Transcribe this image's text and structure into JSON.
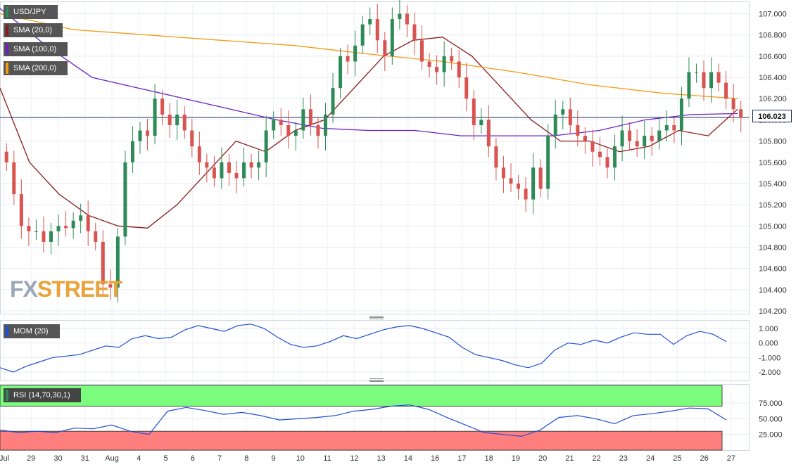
{
  "chart": {
    "symbol": "USD/JPY",
    "last_price": "106.023",
    "watermark": {
      "fx": "FX",
      "street": "STREET"
    },
    "overlays": [
      {
        "label": "SMA (20,0)",
        "color": "#8b1a1a"
      },
      {
        "label": "SMA (100,0)",
        "color": "#6a1fc9"
      },
      {
        "label": "SMA (200,0)",
        "color": "#f39c12"
      }
    ],
    "colors": {
      "up": "#2e8b57",
      "down": "#d9534f",
      "last_line": "#1a2b5c",
      "mom": "#1f4fd8",
      "rsi": "#1f4fd8",
      "rsi_ob": "#7cfc7c",
      "rsi_os": "#ff7f7f"
    }
  },
  "panes": {
    "mom_label": "MOM (20)",
    "rsi_label": "RSI (14,70,30,1)"
  },
  "chart_data": {
    "type": "candlestick",
    "title": "USD/JPY",
    "ylim": [
      104.2,
      107.05
    ],
    "y_ticks": [
      "107.000",
      "106.800",
      "106.600",
      "106.400",
      "106.200",
      "106.000",
      "105.800",
      "105.600",
      "105.400",
      "105.200",
      "105.000",
      "104.800",
      "104.600",
      "104.400",
      "104.200"
    ],
    "x_ticks": [
      "Jul",
      "29",
      "30",
      "31",
      "Aug",
      "4",
      "5",
      "6",
      "7",
      "8",
      "9",
      "10",
      "11",
      "12",
      "13",
      "14",
      "16",
      "17",
      "18",
      "19",
      "20",
      "21",
      "22",
      "23",
      "24",
      "25",
      "26",
      "27"
    ],
    "close_series": [
      105.6,
      105.3,
      105.0,
      104.95,
      104.95,
      104.85,
      104.95,
      105.0,
      104.98,
      105.05,
      105.1,
      104.95,
      104.85,
      104.45,
      104.42,
      104.9,
      105.6,
      105.8,
      105.9,
      105.85,
      106.2,
      106.05,
      105.95,
      106.05,
      105.9,
      105.75,
      105.6,
      105.55,
      105.45,
      105.6,
      105.5,
      105.45,
      105.6,
      105.55,
      105.6,
      105.9,
      106.0,
      105.95,
      105.85,
      105.9,
      106.1,
      105.95,
      105.85,
      106.05,
      106.3,
      106.6,
      106.55,
      106.7,
      106.9,
      106.95,
      106.75,
      106.6,
      106.95,
      107.0,
      106.9,
      106.75,
      106.55,
      106.5,
      106.45,
      106.6,
      106.55,
      106.4,
      106.2,
      105.95,
      106.0,
      105.75,
      105.55,
      105.45,
      105.4,
      105.35,
      105.25,
      105.55,
      105.35,
      105.85,
      106.05,
      106.1,
      105.95,
      105.85,
      105.8,
      105.7,
      105.65,
      105.55,
      105.75,
      105.9,
      105.8,
      105.75,
      105.85,
      105.8,
      105.9,
      105.95,
      105.9,
      106.2,
      106.45,
      106.45,
      106.3,
      106.45,
      106.35,
      106.2,
      106.1,
      106.023
    ],
    "series": [
      {
        "name": "SMA (20,0)",
        "values": [
          106.3,
          105.6,
          105.3,
          105.1,
          105.0,
          104.98,
          105.2,
          105.5,
          105.8,
          105.7,
          105.9,
          106.0,
          106.3,
          106.6,
          106.75,
          106.78,
          106.6,
          106.3,
          106.0,
          105.8,
          105.8,
          105.7,
          105.75,
          105.9,
          105.85,
          106.1
        ]
      },
      {
        "name": "SMA (100,0)",
        "values": [
          107.05,
          106.7,
          106.4,
          106.3,
          106.2,
          106.1,
          106.0,
          105.92,
          105.9,
          105.9,
          105.85,
          105.85,
          105.85,
          105.9,
          106.0,
          106.05,
          106.06
        ]
      },
      {
        "name": "SMA (200,0)",
        "values": [
          107.0,
          106.85,
          106.8,
          106.75,
          106.7,
          106.62,
          106.55,
          106.45,
          106.33,
          106.25,
          106.2
        ]
      }
    ]
  },
  "mom_data": {
    "y_ticks": [
      "1.000",
      "0.000",
      "-1.000",
      "-2.000"
    ],
    "values": [
      -1.7,
      -2.0,
      -1.6,
      -1.3,
      -1.0,
      -0.9,
      -0.8,
      -0.5,
      -0.2,
      -0.3,
      0.3,
      0.5,
      0.3,
      0.4,
      0.9,
      1.2,
      1.0,
      0.8,
      1.2,
      1.3,
      1.0,
      0.4,
      -0.1,
      -0.3,
      -0.2,
      0.1,
      0.5,
      0.3,
      0.6,
      0.9,
      1.1,
      1.2,
      1.0,
      0.7,
      0.4,
      -0.3,
      -0.8,
      -1.0,
      -1.2,
      -1.5,
      -1.7,
      -1.4,
      -0.5,
      0.0,
      -0.1,
      0.2,
      0.0,
      0.4,
      0.7,
      0.6,
      0.6,
      -0.1,
      0.5,
      0.8,
      0.6,
      0.1
    ]
  },
  "rsi_data": {
    "y_ticks": [
      "75.000",
      "50.000",
      "25.000"
    ],
    "values": [
      32,
      28,
      30,
      28,
      35,
      34,
      40,
      30,
      25,
      62,
      68,
      63,
      57,
      60,
      55,
      48,
      50,
      52,
      55,
      62,
      65,
      70,
      72,
      65,
      52,
      40,
      28,
      25,
      22,
      32,
      52,
      55,
      50,
      42,
      55,
      58,
      62,
      67,
      66,
      48
    ]
  }
}
